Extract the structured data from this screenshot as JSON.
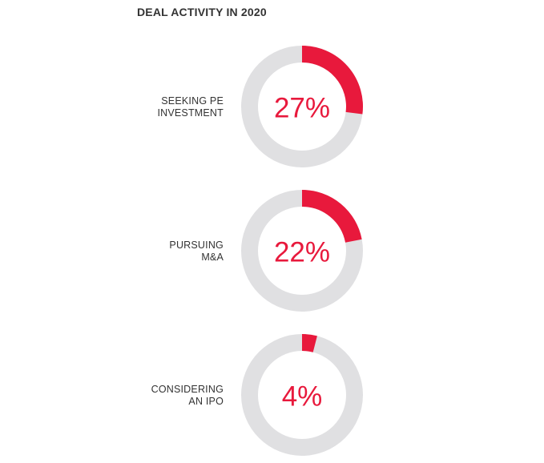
{
  "title": "DEAL ACTIVITY IN 2020",
  "colors": {
    "accent": "#e8193c",
    "track": "#e0e0e2",
    "text": "#333333"
  },
  "chart_data": {
    "type": "pie",
    "title": "DEAL ACTIVITY IN 2020",
    "categories": [
      "SEEKING PE INVESTMENT",
      "PURSUING M&A",
      "CONSIDERING AN IPO"
    ],
    "values": [
      27,
      22,
      4
    ],
    "unit": "%",
    "items": [
      {
        "label_lines": [
          "SEEKING PE",
          "INVESTMENT"
        ],
        "value": 27,
        "value_label": "27%"
      },
      {
        "label_lines": [
          "PURSUING",
          "M&A"
        ],
        "value": 22,
        "value_label": "22%"
      },
      {
        "label_lines": [
          "CONSIDERING",
          "AN IPO"
        ],
        "value": 4,
        "value_label": "4%"
      }
    ]
  }
}
